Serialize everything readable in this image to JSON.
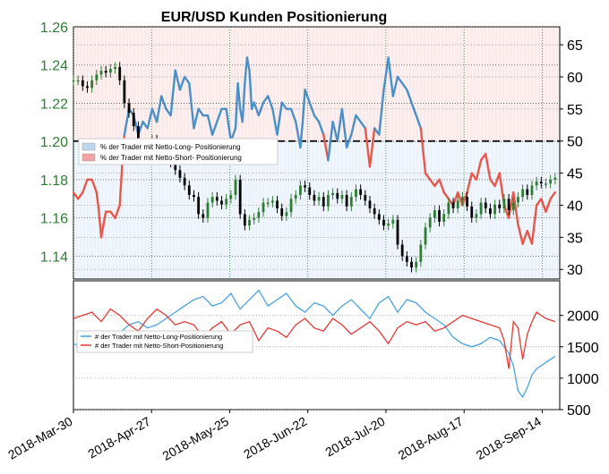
{
  "chart_data": {
    "type": "line",
    "title": "EUR/USD Kunden Positionierung",
    "x_dates": [
      "2018-Mar-30",
      "2018-Apr-27",
      "2018-May-25",
      "2018-Jun-22",
      "2018-Jul-20",
      "2018-Aug-17",
      "2018-Sep-14"
    ],
    "top_panel": {
      "left_axis": {
        "ticks": [
          "1.26",
          "1.24",
          "1.22",
          "1.20",
          "1.18",
          "1.16",
          "1.14"
        ],
        "ylim": [
          1.128,
          1.26
        ],
        "color": "#2e7d32"
      },
      "right_axis": {
        "ticks": [
          "65",
          "60",
          "55",
          "50",
          "45",
          "40",
          "35",
          "30"
        ],
        "ylim": [
          28.5,
          67.8
        ]
      },
      "reference_line": 50,
      "legend": [
        {
          "label": "% der Trader mit Netto-Long- Positionierung",
          "color": "#bcd7ee"
        },
        {
          "label": "% der Trader mit Netto-Short- Positionierung",
          "color": "#f2a3a3"
        }
      ],
      "sentiment_pct": [
        [
          0,
          42
        ],
        [
          2,
          41
        ],
        [
          4,
          42
        ],
        [
          6,
          44
        ],
        [
          8,
          44
        ],
        [
          10,
          42
        ],
        [
          11,
          39
        ],
        [
          12,
          35
        ],
        [
          13,
          37
        ],
        [
          14,
          39
        ],
        [
          16,
          39
        ],
        [
          18,
          38
        ],
        [
          19,
          39
        ],
        [
          20,
          40
        ],
        [
          21,
          46
        ],
        [
          22,
          51
        ],
        [
          23,
          53
        ],
        [
          24,
          55
        ],
        [
          26,
          54
        ],
        [
          28,
          51
        ],
        [
          30,
          53
        ],
        [
          32,
          52
        ],
        [
          34,
          55
        ],
        [
          36,
          53
        ],
        [
          38,
          57
        ],
        [
          40,
          55
        ],
        [
          42,
          54
        ],
        [
          44,
          61
        ],
        [
          46,
          58
        ],
        [
          48,
          60
        ],
        [
          50,
          59
        ],
        [
          52,
          52
        ],
        [
          54,
          55
        ],
        [
          56,
          54
        ],
        [
          58,
          54
        ],
        [
          60,
          51
        ],
        [
          62,
          53
        ],
        [
          64,
          55
        ],
        [
          66,
          55
        ],
        [
          68,
          50
        ],
        [
          70,
          52
        ],
        [
          71,
          59
        ],
        [
          72,
          55
        ],
        [
          73,
          53
        ],
        [
          74,
          59
        ],
        [
          75,
          63
        ],
        [
          76,
          61
        ],
        [
          77,
          55
        ],
        [
          78,
          56
        ],
        [
          80,
          54
        ],
        [
          82,
          56
        ],
        [
          84,
          57
        ],
        [
          86,
          55
        ],
        [
          88,
          51
        ],
        [
          90,
          56
        ],
        [
          92,
          55
        ],
        [
          94,
          55
        ],
        [
          96,
          53
        ],
        [
          98,
          49
        ],
        [
          99,
          53
        ],
        [
          100,
          58
        ],
        [
          102,
          56
        ],
        [
          104,
          54
        ],
        [
          106,
          53
        ],
        [
          108,
          51
        ],
        [
          110,
          47
        ],
        [
          112,
          53
        ],
        [
          114,
          50
        ],
        [
          116,
          55
        ],
        [
          118,
          49
        ],
        [
          120,
          51
        ],
        [
          122,
          54
        ],
        [
          124,
          53
        ],
        [
          126,
          52
        ],
        [
          128,
          46
        ],
        [
          130,
          52
        ],
        [
          132,
          51
        ],
        [
          134,
          58
        ],
        [
          136,
          63
        ],
        [
          138,
          57
        ],
        [
          140,
          60
        ],
        [
          142,
          59
        ],
        [
          144,
          58
        ],
        [
          146,
          56
        ],
        [
          148,
          54
        ],
        [
          150,
          52
        ],
        [
          152,
          45
        ],
        [
          154,
          44
        ],
        [
          156,
          43
        ],
        [
          158,
          44
        ],
        [
          160,
          42
        ],
        [
          162,
          41
        ],
        [
          164,
          40
        ],
        [
          166,
          42
        ],
        [
          168,
          40
        ],
        [
          170,
          42
        ],
        [
          172,
          45
        ],
        [
          174,
          44
        ],
        [
          176,
          47
        ],
        [
          178,
          48
        ],
        [
          180,
          44
        ],
        [
          182,
          43
        ],
        [
          184,
          45
        ],
        [
          186,
          40
        ],
        [
          188,
          38
        ],
        [
          190,
          42
        ],
        [
          192,
          37
        ],
        [
          194,
          34
        ],
        [
          196,
          36
        ],
        [
          198,
          34
        ],
        [
          200,
          40
        ],
        [
          202,
          41
        ],
        [
          204,
          39
        ],
        [
          206,
          41
        ],
        [
          208,
          42
        ]
      ],
      "price": [
        [
          0,
          1.232
        ],
        [
          2,
          1.232
        ],
        [
          4,
          1.229
        ],
        [
          6,
          1.228
        ],
        [
          8,
          1.232
        ],
        [
          10,
          1.235
        ],
        [
          12,
          1.237
        ],
        [
          14,
          1.236
        ],
        [
          16,
          1.238
        ],
        [
          18,
          1.239
        ],
        [
          20,
          1.232
        ],
        [
          22,
          1.22
        ],
        [
          24,
          1.215
        ],
        [
          26,
          1.208
        ],
        [
          28,
          1.195
        ],
        [
          30,
          1.192
        ],
        [
          32,
          1.196
        ],
        [
          34,
          1.201
        ],
        [
          36,
          1.198
        ],
        [
          38,
          1.196
        ],
        [
          40,
          1.191
        ],
        [
          42,
          1.189
        ],
        [
          44,
          1.185
        ],
        [
          46,
          1.181
        ],
        [
          48,
          1.177
        ],
        [
          50,
          1.172
        ],
        [
          52,
          1.171
        ],
        [
          54,
          1.162
        ],
        [
          56,
          1.16
        ],
        [
          58,
          1.168
        ],
        [
          60,
          1.171
        ],
        [
          62,
          1.169
        ],
        [
          64,
          1.167
        ],
        [
          66,
          1.17
        ],
        [
          68,
          1.172
        ],
        [
          70,
          1.18
        ],
        [
          72,
          1.162
        ],
        [
          74,
          1.156
        ],
        [
          76,
          1.159
        ],
        [
          78,
          1.16
        ],
        [
          80,
          1.163
        ],
        [
          82,
          1.168
        ],
        [
          84,
          1.168
        ],
        [
          86,
          1.169
        ],
        [
          88,
          1.165
        ],
        [
          90,
          1.161
        ],
        [
          92,
          1.163
        ],
        [
          94,
          1.17
        ],
        [
          96,
          1.172
        ],
        [
          98,
          1.177
        ],
        [
          100,
          1.176
        ],
        [
          102,
          1.172
        ],
        [
          104,
          1.169
        ],
        [
          106,
          1.171
        ],
        [
          108,
          1.166
        ],
        [
          110,
          1.172
        ],
        [
          112,
          1.173
        ],
        [
          114,
          1.17
        ],
        [
          116,
          1.172
        ],
        [
          118,
          1.166
        ],
        [
          120,
          1.171
        ],
        [
          122,
          1.175
        ],
        [
          124,
          1.172
        ],
        [
          126,
          1.169
        ],
        [
          128,
          1.165
        ],
        [
          130,
          1.162
        ],
        [
          132,
          1.159
        ],
        [
          134,
          1.156
        ],
        [
          136,
          1.157
        ],
        [
          138,
          1.159
        ],
        [
          140,
          1.146
        ],
        [
          142,
          1.14
        ],
        [
          144,
          1.137
        ],
        [
          146,
          1.134
        ],
        [
          148,
          1.137
        ],
        [
          150,
          1.146
        ],
        [
          152,
          1.155
        ],
        [
          154,
          1.16
        ],
        [
          156,
          1.164
        ],
        [
          158,
          1.158
        ],
        [
          160,
          1.162
        ],
        [
          162,
          1.168
        ],
        [
          164,
          1.165
        ],
        [
          166,
          1.169
        ],
        [
          168,
          1.171
        ],
        [
          170,
          1.166
        ],
        [
          172,
          1.16
        ],
        [
          174,
          1.162
        ],
        [
          176,
          1.168
        ],
        [
          178,
          1.165
        ],
        [
          180,
          1.162
        ],
        [
          182,
          1.167
        ],
        [
          184,
          1.165
        ],
        [
          186,
          1.17
        ],
        [
          188,
          1.164
        ],
        [
          190,
          1.168
        ],
        [
          192,
          1.171
        ],
        [
          194,
          1.175
        ],
        [
          196,
          1.172
        ],
        [
          198,
          1.177
        ],
        [
          200,
          1.179
        ],
        [
          202,
          1.178
        ],
        [
          204,
          1.178
        ],
        [
          206,
          1.18
        ],
        [
          208,
          1.181
        ]
      ]
    },
    "bottom_panel": {
      "right_axis": {
        "ticks": [
          "2000",
          "1500",
          "1000",
          "500"
        ],
        "ylim": [
          500,
          2550
        ]
      },
      "legend": [
        {
          "label": "# der Trader mit  Netto-Long-Positionierung",
          "color": "#4aa3df"
        },
        {
          "label": "# der Trader mit  Netto-Short-Positionierung",
          "color": "#e53935"
        }
      ],
      "long_traders": [
        [
          0,
          1550
        ],
        [
          4,
          1500
        ],
        [
          8,
          1620
        ],
        [
          12,
          1700
        ],
        [
          16,
          1600
        ],
        [
          20,
          1720
        ],
        [
          24,
          1850
        ],
        [
          28,
          1900
        ],
        [
          32,
          1800
        ],
        [
          36,
          1850
        ],
        [
          40,
          1950
        ],
        [
          44,
          2050
        ],
        [
          48,
          2150
        ],
        [
          52,
          2250
        ],
        [
          56,
          2300
        ],
        [
          60,
          2150
        ],
        [
          64,
          2200
        ],
        [
          68,
          2350
        ],
        [
          72,
          2100
        ],
        [
          76,
          2250
        ],
        [
          80,
          2400
        ],
        [
          84,
          2150
        ],
        [
          88,
          2250
        ],
        [
          92,
          2350
        ],
        [
          96,
          2150
        ],
        [
          100,
          2050
        ],
        [
          104,
          2200
        ],
        [
          108,
          2150
        ],
        [
          112,
          2000
        ],
        [
          116,
          2150
        ],
        [
          120,
          2250
        ],
        [
          124,
          2100
        ],
        [
          128,
          1950
        ],
        [
          132,
          2200
        ],
        [
          136,
          2300
        ],
        [
          140,
          2050
        ],
        [
          144,
          2250
        ],
        [
          148,
          2200
        ],
        [
          152,
          2050
        ],
        [
          156,
          1950
        ],
        [
          160,
          1850
        ],
        [
          164,
          1650
        ],
        [
          168,
          1550
        ],
        [
          172,
          1500
        ],
        [
          176,
          1550
        ],
        [
          180,
          1650
        ],
        [
          184,
          1600
        ],
        [
          188,
          1400
        ],
        [
          190,
          1200
        ],
        [
          192,
          800
        ],
        [
          194,
          700
        ],
        [
          196,
          850
        ],
        [
          198,
          1050
        ],
        [
          200,
          1150
        ],
        [
          204,
          1250
        ],
        [
          208,
          1350
        ]
      ],
      "short_traders": [
        [
          0,
          1950
        ],
        [
          4,
          2000
        ],
        [
          8,
          2050
        ],
        [
          12,
          1900
        ],
        [
          16,
          2100
        ],
        [
          20,
          2000
        ],
        [
          24,
          1850
        ],
        [
          28,
          1750
        ],
        [
          32,
          1950
        ],
        [
          36,
          2100
        ],
        [
          40,
          2000
        ],
        [
          44,
          1850
        ],
        [
          48,
          1900
        ],
        [
          52,
          1850
        ],
        [
          56,
          1650
        ],
        [
          60,
          1800
        ],
        [
          64,
          1900
        ],
        [
          68,
          1700
        ],
        [
          72,
          1850
        ],
        [
          76,
          1900
        ],
        [
          80,
          1600
        ],
        [
          84,
          1800
        ],
        [
          88,
          1750
        ],
        [
          92,
          1650
        ],
        [
          96,
          1850
        ],
        [
          100,
          1950
        ],
        [
          104,
          1800
        ],
        [
          108,
          1750
        ],
        [
          112,
          1950
        ],
        [
          116,
          1850
        ],
        [
          120,
          1700
        ],
        [
          124,
          1800
        ],
        [
          128,
          1900
        ],
        [
          132,
          1750
        ],
        [
          136,
          1550
        ],
        [
          140,
          1800
        ],
        [
          144,
          1900
        ],
        [
          148,
          1850
        ],
        [
          152,
          1900
        ],
        [
          156,
          1750
        ],
        [
          160,
          1800
        ],
        [
          164,
          1900
        ],
        [
          168,
          2000
        ],
        [
          172,
          1950
        ],
        [
          176,
          1900
        ],
        [
          180,
          1850
        ],
        [
          184,
          1800
        ],
        [
          186,
          1600
        ],
        [
          188,
          1150
        ],
        [
          190,
          1900
        ],
        [
          192,
          1800
        ],
        [
          194,
          1300
        ],
        [
          196,
          1700
        ],
        [
          198,
          1900
        ],
        [
          200,
          2050
        ],
        [
          204,
          1950
        ],
        [
          208,
          1900
        ]
      ]
    }
  }
}
